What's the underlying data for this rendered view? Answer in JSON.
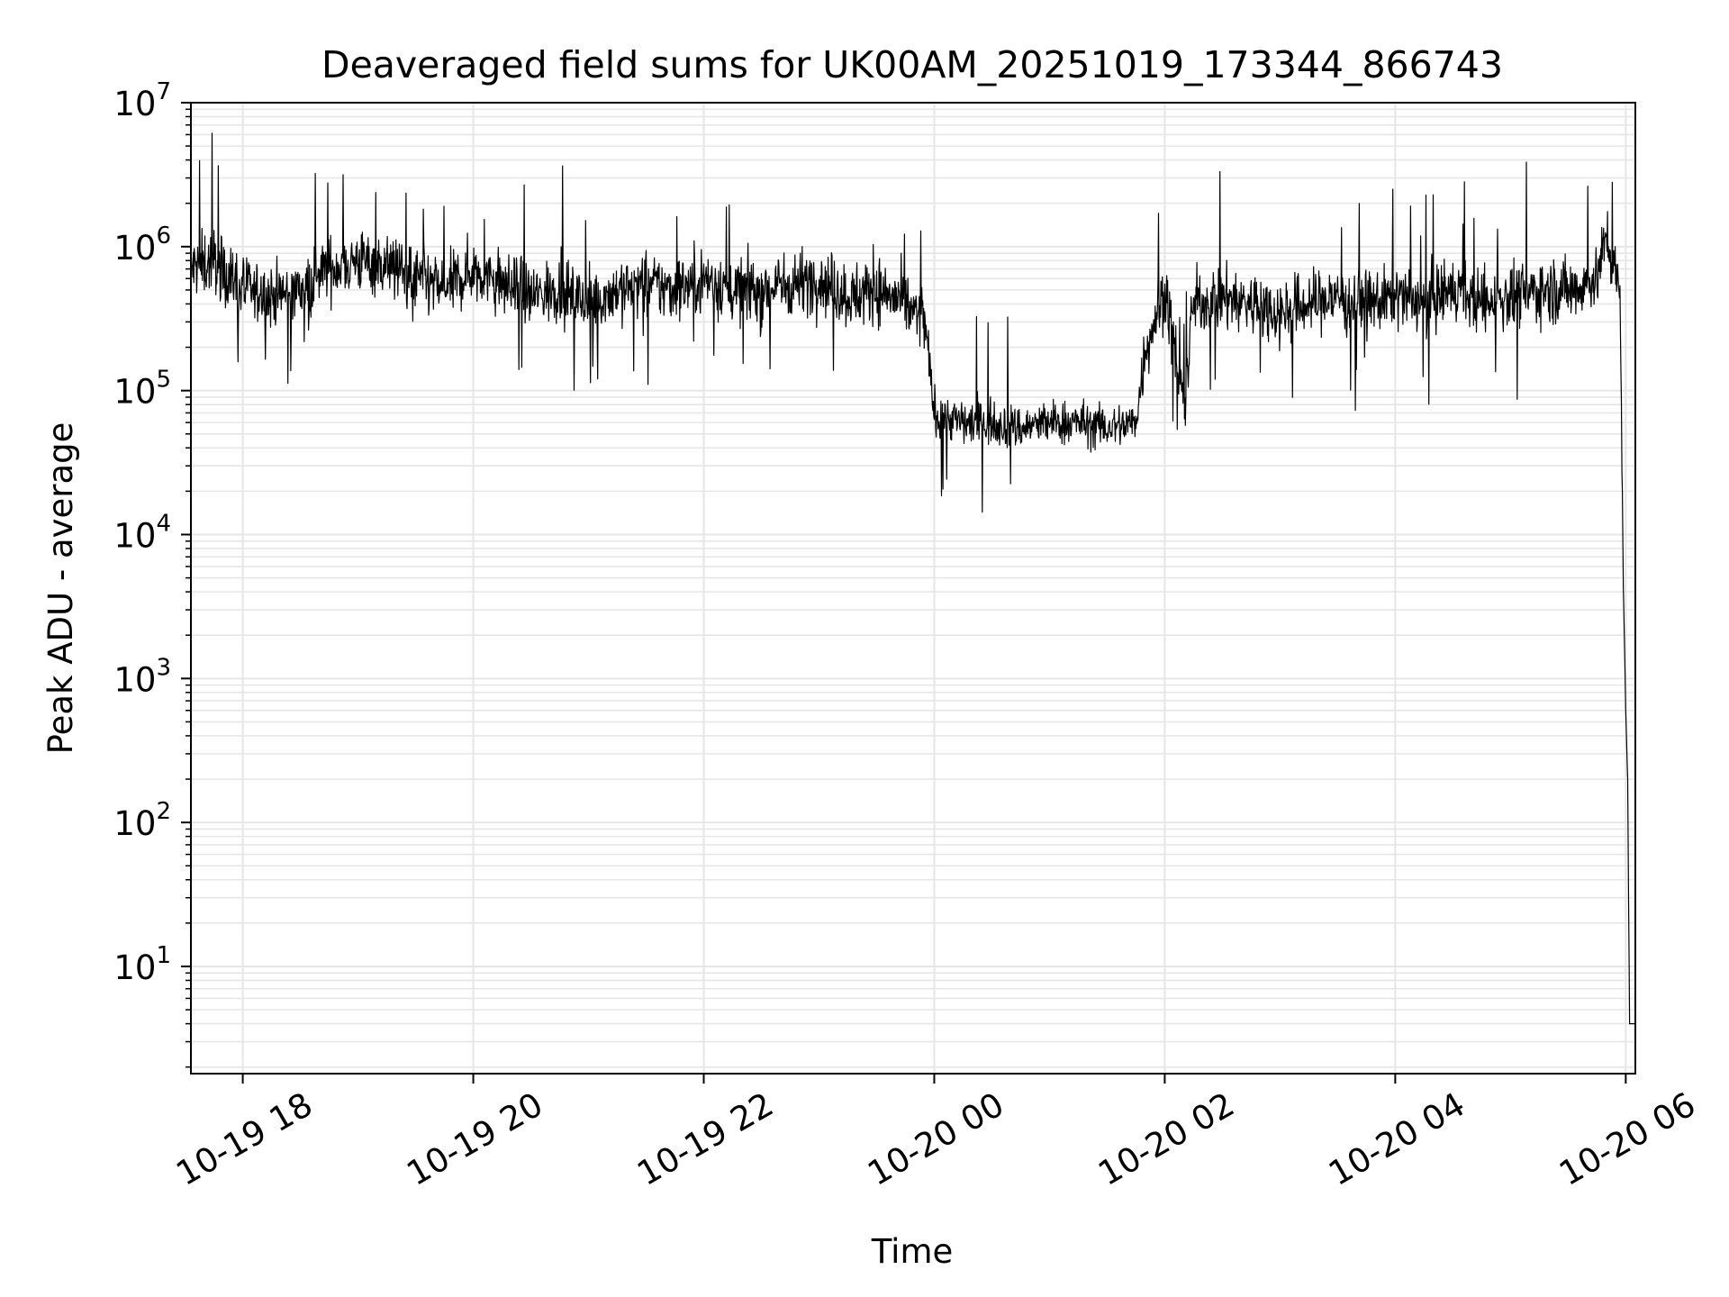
{
  "chart_data": {
    "type": "line",
    "title": "Deaveraged field sums for UK00AM_20251019_173344_866743",
    "xlabel": "Time",
    "ylabel": "Peak ADU - average",
    "yscale": "log",
    "ylim": [
      1.8,
      10000000
    ],
    "xlim": [
      "2025-10-19 17:33",
      "2025-10-20 06:05"
    ],
    "grid": true,
    "line_color": "#000000",
    "grid_color": "#e6e6e6",
    "x_ticks": [
      {
        "t": "2025-10-19 18:00",
        "label": "10-19 18"
      },
      {
        "t": "2025-10-19 20:00",
        "label": "10-19 20"
      },
      {
        "t": "2025-10-19 22:00",
        "label": "10-19 22"
      },
      {
        "t": "2025-10-20 00:00",
        "label": "10-20 00"
      },
      {
        "t": "2025-10-20 02:00",
        "label": "10-20 02"
      },
      {
        "t": "2025-10-20 04:00",
        "label": "10-20 04"
      },
      {
        "t": "2025-10-20 06:00",
        "label": "10-20 06"
      }
    ],
    "y_ticks": [
      {
        "value": 10,
        "base": "10",
        "exp": "1"
      },
      {
        "value": 100,
        "base": "10",
        "exp": "2"
      },
      {
        "value": 1000,
        "base": "10",
        "exp": "3"
      },
      {
        "value": 10000,
        "base": "10",
        "exp": "4"
      },
      {
        "value": 100000,
        "base": "10",
        "exp": "5"
      },
      {
        "value": 1000000,
        "base": "10",
        "exp": "6"
      },
      {
        "value": 10000000,
        "base": "10",
        "exp": "7"
      }
    ],
    "series": [
      {
        "x": [
          "2025-10-19 17:33",
          "2025-10-19 17:45",
          "2025-10-19 18:00",
          "2025-10-19 18:15",
          "2025-10-19 18:30",
          "2025-10-19 18:45",
          "2025-10-19 19:00",
          "2025-10-19 19:15",
          "2025-10-19 19:30",
          "2025-10-19 19:45",
          "2025-10-19 20:00",
          "2025-10-19 20:15",
          "2025-10-19 20:30",
          "2025-10-19 20:45",
          "2025-10-19 21:00",
          "2025-10-19 21:15",
          "2025-10-19 21:30",
          "2025-10-19 21:45",
          "2025-10-19 22:00",
          "2025-10-19 22:15",
          "2025-10-19 22:30",
          "2025-10-19 22:45",
          "2025-10-19 23:00",
          "2025-10-19 23:15",
          "2025-10-19 23:30",
          "2025-10-19 23:45",
          "2025-10-19 23:55",
          "2025-10-20 00:00",
          "2025-10-20 00:15",
          "2025-10-20 00:30",
          "2025-10-20 00:45",
          "2025-10-20 01:00",
          "2025-10-20 01:15",
          "2025-10-20 01:30",
          "2025-10-20 01:45",
          "2025-10-20 01:50",
          "2025-10-20 02:00",
          "2025-10-20 02:10",
          "2025-10-20 02:15",
          "2025-10-20 02:30",
          "2025-10-20 02:45",
          "2025-10-20 03:00",
          "2025-10-20 03:15",
          "2025-10-20 03:30",
          "2025-10-20 03:45",
          "2025-10-20 04:00",
          "2025-10-20 04:15",
          "2025-10-20 04:30",
          "2025-10-20 04:45",
          "2025-10-20 05:00",
          "2025-10-20 05:15",
          "2025-10-20 05:30",
          "2025-10-20 05:45",
          "2025-10-20 05:50",
          "2025-10-20 05:54",
          "2025-10-20 05:57",
          "2025-10-20 05:59",
          "2025-10-20 06:00",
          "2025-10-20 06:01",
          "2025-10-20 06:02",
          "2025-10-20 06:03",
          "2025-10-20 06:04",
          "2025-10-20 06:05"
        ],
        "y": [
          700000,
          800000,
          500000,
          450000,
          500000,
          700000,
          800000,
          750000,
          600000,
          500000,
          700000,
          550000,
          450000,
          500000,
          400000,
          500000,
          550000,
          500000,
          600000,
          500000,
          500000,
          550000,
          600000,
          450000,
          500000,
          400000,
          300000,
          70000,
          60000,
          60000,
          55000,
          60000,
          60000,
          55000,
          60000,
          200000,
          500000,
          80000,
          400000,
          450000,
          400000,
          350000,
          400000,
          450000,
          400000,
          450000,
          400000,
          500000,
          400000,
          450000,
          500000,
          500000,
          600000,
          1200000,
          700000,
          450000,
          3000,
          600,
          200,
          4,
          4,
          4,
          4
        ]
      }
    ]
  }
}
